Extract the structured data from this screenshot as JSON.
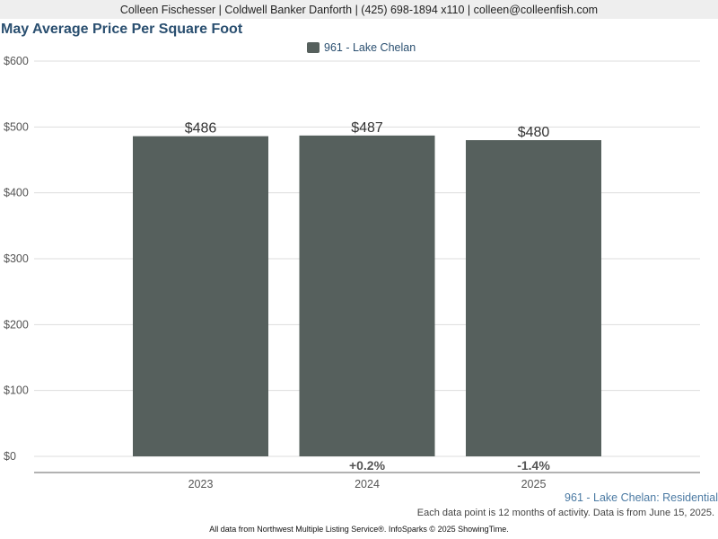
{
  "header": {
    "contact": "Colleen Fischesser | Coldwell Banker Danforth | (425) 698-1894 x110 | colleen@colleenfish.com"
  },
  "footer": {
    "subtitle": "961 - Lake Chelan: Residential",
    "activity_note": "Each data point is 12 months of activity. Data is from June 15, 2025.",
    "source": "All data from Northwest Multiple Listing Service®. InfoSparks © 2025 ShowingTime."
  },
  "chart_data": {
    "type": "bar",
    "title": "May Average Price Per Square Foot",
    "xlabel": "",
    "ylabel": "",
    "categories": [
      "2023",
      "2024",
      "2025"
    ],
    "series": [
      {
        "name": "961 - Lake Chelan",
        "values": [
          486,
          487,
          480
        ],
        "value_labels": [
          "$486",
          "$487",
          "$480"
        ],
        "change_labels": [
          "",
          "+0.2%",
          "-1.4%"
        ],
        "color": "#56605d"
      }
    ],
    "ylim": [
      0,
      600
    ],
    "yticks": [
      0,
      100,
      200,
      300,
      400,
      500,
      600
    ],
    "ytick_labels": [
      "$0",
      "$100",
      "$200",
      "$300",
      "$400",
      "$500",
      "$600"
    ],
    "grid": true,
    "legend": "top-center"
  }
}
